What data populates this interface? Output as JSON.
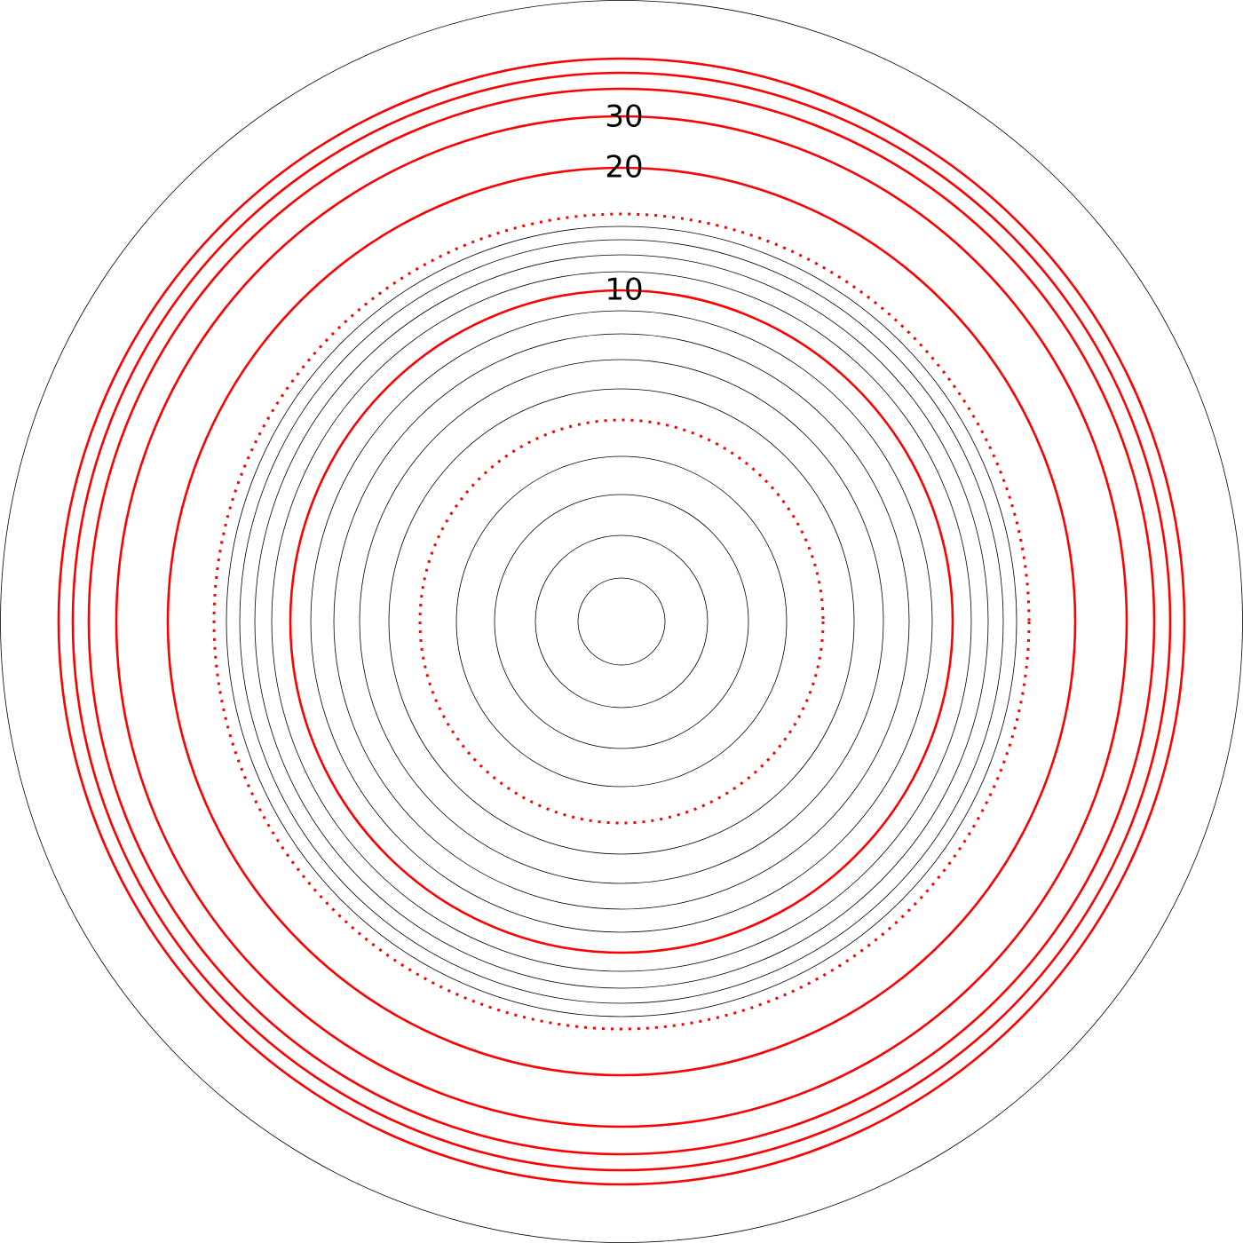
{
  "labels": [
    {
      "text": "30",
      "ring": "red-solid-4"
    },
    {
      "text": "20",
      "ring": "red-solid-5"
    },
    {
      "text": "10",
      "ring": "red-solid-6"
    }
  ],
  "colors": {
    "thin_ring": "#000000",
    "highlight_ring": "#ff0000",
    "background": "#ffffff"
  },
  "ring_styles": [
    "thin-black",
    "red-solid",
    "red-dotted"
  ]
}
